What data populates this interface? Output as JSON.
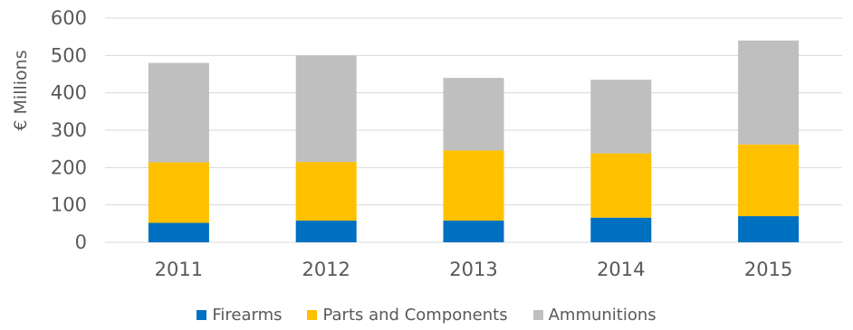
{
  "chart_data": {
    "type": "bar",
    "stacked": true,
    "categories": [
      "2011",
      "2012",
      "2013",
      "2014",
      "2015"
    ],
    "series": [
      {
        "name": "Firearms",
        "color": "#0070c0",
        "values": [
          52,
          58,
          58,
          66,
          70
        ]
      },
      {
        "name": "Parts and Components",
        "color": "#ffc000",
        "values": [
          162,
          157,
          188,
          172,
          192
        ]
      },
      {
        "name": "Ammunitions",
        "color": "#bfbfbf",
        "values": [
          266,
          285,
          194,
          197,
          278
        ]
      }
    ],
    "title": "",
    "xlabel": "",
    "ylabel": "€ Millions",
    "ylim": [
      0,
      600
    ],
    "yticks": [
      0,
      100,
      200,
      300,
      400,
      500,
      600
    ],
    "grid": true,
    "legend_position": "bottom"
  }
}
